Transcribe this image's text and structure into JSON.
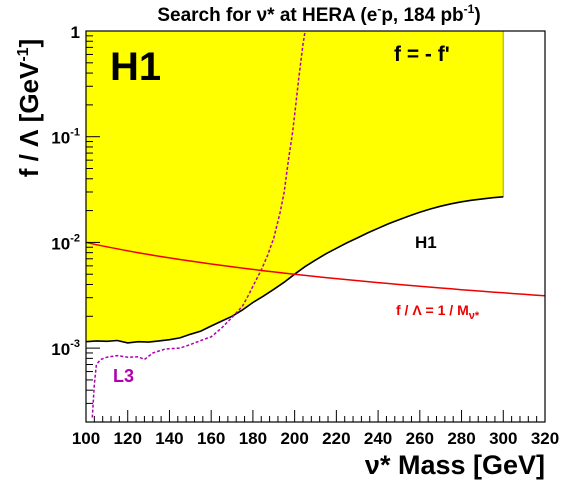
{
  "chart_data": {
    "type": "line",
    "title": "Search for ν* at HERA (e⁻p, 184 pb⁻¹)",
    "title_parts": {
      "main": "Search for ν* at HERA (e",
      "sup1": "-",
      "mid": "p, 184 pb",
      "sup2": "-1",
      "end": ")"
    },
    "xlabel": "ν* Mass [GeV]",
    "ylabel": "f / Λ [GeV⁻¹]",
    "ylabel_parts": {
      "main": "f / Λ [GeV",
      "sup": "-1",
      "end": "]"
    },
    "xlim": [
      100,
      320
    ],
    "ylim": [
      0.0002,
      1
    ],
    "yscale": "log",
    "x_ticks": [
      100,
      120,
      140,
      160,
      180,
      200,
      220,
      240,
      260,
      280,
      300,
      320
    ],
    "y_ticks": [
      {
        "value": 1,
        "base": "1",
        "exp": ""
      },
      {
        "value": 0.1,
        "base": "10",
        "exp": "-1"
      },
      {
        "value": 0.01,
        "base": "10",
        "exp": "-2"
      },
      {
        "value": 0.001,
        "base": "10",
        "exp": "-3"
      }
    ],
    "grid": false,
    "annotations": {
      "experiment": "H1",
      "coupling": "f = - f'",
      "h1_curve_label": "H1",
      "l3_label": "L3",
      "line_label": {
        "main": "f / Λ  = 1 / M",
        "sub": "ν*"
      }
    },
    "colors": {
      "excluded_fill": "#ffff00",
      "h1_line": "#000000",
      "l3_line": "#b000b0",
      "theory_line": "#ee0000",
      "label_l3": "#b000b0",
      "label_theory": "#ee0000"
    },
    "series": [
      {
        "name": "H1",
        "style": "solid-black-with-yellow-excluded-region",
        "x": [
          100,
          105,
          110,
          115,
          120,
          125,
          130,
          135,
          140,
          145,
          150,
          155,
          160,
          165,
          170,
          175,
          180,
          185,
          190,
          195,
          200,
          205,
          210,
          215,
          220,
          225,
          230,
          235,
          240,
          245,
          250,
          255,
          260,
          265,
          270,
          275,
          280,
          285,
          290,
          295,
          300
        ],
        "y": [
          0.00115,
          0.00117,
          0.00116,
          0.00118,
          0.00112,
          0.00115,
          0.00114,
          0.00117,
          0.0012,
          0.00125,
          0.00135,
          0.00145,
          0.00162,
          0.0018,
          0.002,
          0.0023,
          0.0027,
          0.0031,
          0.0036,
          0.0042,
          0.005,
          0.0059,
          0.0068,
          0.0078,
          0.0088,
          0.0099,
          0.011,
          0.0123,
          0.0136,
          0.015,
          0.0164,
          0.0178,
          0.0193,
          0.0207,
          0.022,
          0.0232,
          0.0242,
          0.0251,
          0.0258,
          0.0265,
          0.027
        ]
      },
      {
        "name": "L3",
        "style": "dashed-magenta",
        "x": [
          103,
          104,
          105,
          107,
          110,
          115,
          120,
          125,
          128,
          132,
          138,
          145,
          150,
          155,
          160,
          165,
          170,
          175,
          178,
          181,
          184,
          187,
          190,
          193,
          195,
          197,
          199,
          200,
          201,
          202,
          203,
          204,
          205
        ],
        "y": [
          0.00022,
          0.00045,
          0.0007,
          0.00078,
          0.00082,
          0.00085,
          0.00082,
          0.00083,
          0.00078,
          0.0009,
          0.00098,
          0.001,
          0.00108,
          0.00118,
          0.00128,
          0.00155,
          0.00195,
          0.0025,
          0.0032,
          0.0042,
          0.0055,
          0.0075,
          0.011,
          0.019,
          0.03,
          0.06,
          0.11,
          0.16,
          0.24,
          0.36,
          0.52,
          0.75,
          1.0
        ]
      },
      {
        "name": "f / Λ = 1 / M_ν*",
        "style": "solid-red",
        "x": [
          100,
          320
        ],
        "y": [
          0.01,
          0.003125
        ]
      }
    ]
  }
}
